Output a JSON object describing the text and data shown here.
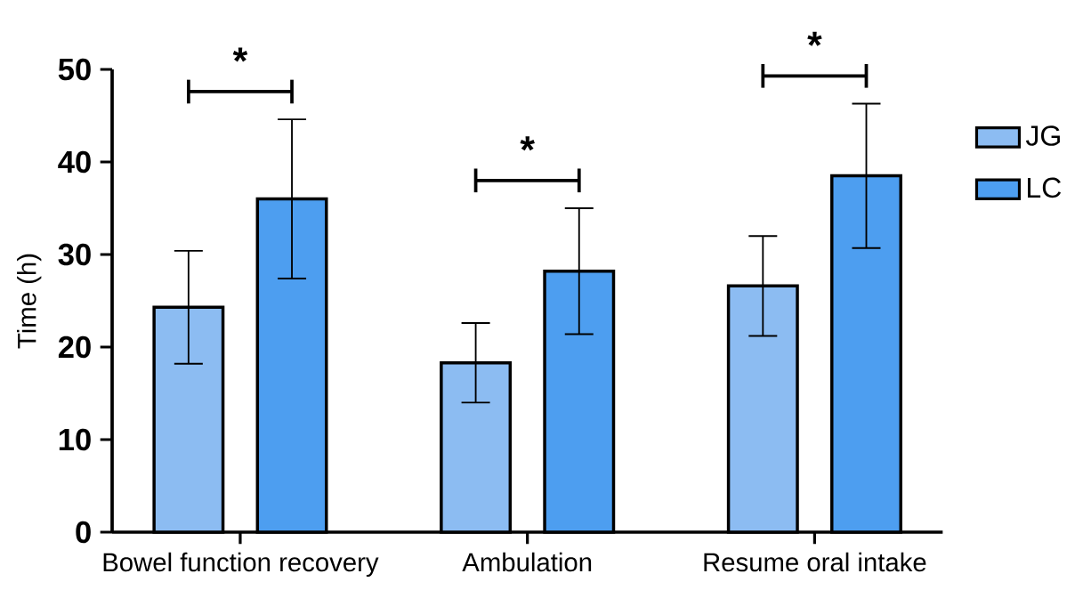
{
  "chart_data": {
    "type": "bar",
    "ylabel": "Time (h)",
    "categories": [
      "Bowel function recovery",
      "Ambulation",
      "Resume oral intake"
    ],
    "series": [
      {
        "name": "JG",
        "color": "#8cbcf2",
        "values": [
          24.3,
          18.3,
          26.6
        ],
        "errors": [
          6.1,
          4.3,
          5.4
        ]
      },
      {
        "name": "LC",
        "color": "#4d9ef0",
        "values": [
          36.0,
          28.2,
          38.5
        ],
        "errors": [
          8.6,
          6.8,
          7.8
        ]
      }
    ],
    "ylim": [
      0,
      50
    ],
    "yticks": [
      0,
      10,
      20,
      30,
      40,
      50
    ],
    "annotations": [
      "*",
      "*",
      "*"
    ],
    "legend": "top right",
    "grid": false
  }
}
